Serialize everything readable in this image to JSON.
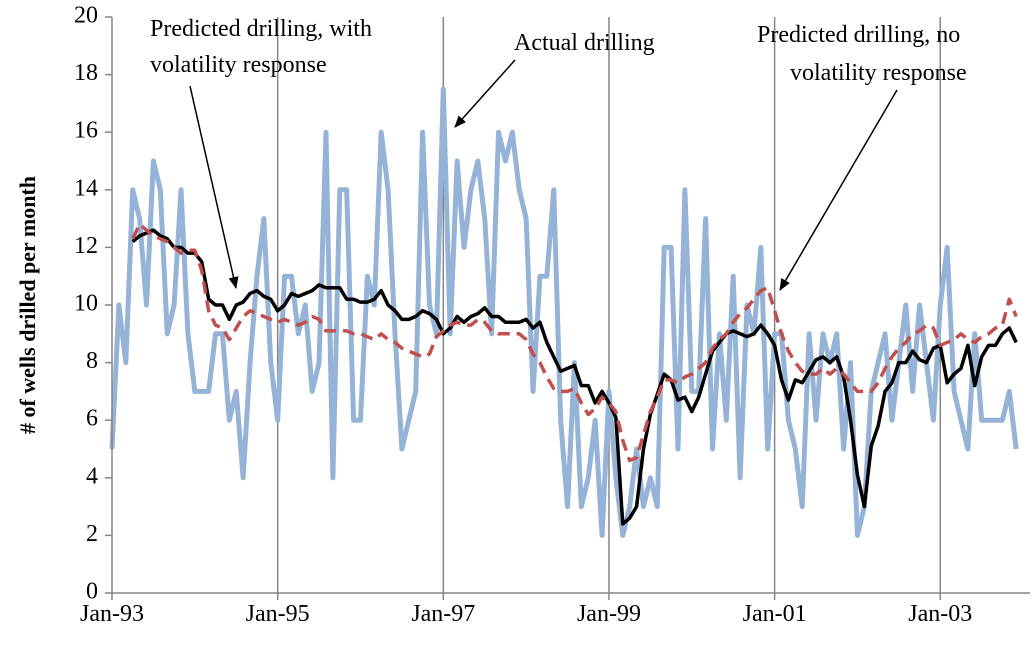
{
  "chart_data": {
    "type": "line",
    "y_label": "# of wells drilled per month",
    "categories": [
      "Jan-93",
      null,
      null,
      null,
      null,
      null,
      null,
      null,
      null,
      null,
      null,
      null,
      null,
      null,
      null,
      null,
      null,
      null,
      null,
      null,
      null,
      null,
      null,
      null,
      "Jan-95",
      null,
      null,
      null,
      null,
      null,
      null,
      null,
      null,
      null,
      null,
      null,
      null,
      null,
      null,
      null,
      null,
      null,
      null,
      null,
      null,
      null,
      null,
      null,
      "Jan-97",
      null,
      null,
      null,
      null,
      null,
      null,
      null,
      null,
      null,
      null,
      null,
      null,
      null,
      null,
      null,
      null,
      null,
      null,
      null,
      null,
      null,
      null,
      null,
      "Jan-99",
      null,
      null,
      null,
      null,
      null,
      null,
      null,
      null,
      null,
      null,
      null,
      null,
      null,
      null,
      null,
      null,
      null,
      null,
      null,
      null,
      null,
      null,
      null,
      "Jan-01",
      null,
      null,
      null,
      null,
      null,
      null,
      null,
      null,
      null,
      null,
      null,
      null,
      null,
      null,
      null,
      null,
      null,
      null,
      null,
      null,
      null,
      null,
      null,
      "Jan-03",
      null,
      null,
      null,
      null,
      null,
      null,
      null,
      null,
      null,
      null,
      null
    ],
    "series": [
      {
        "name": "Actual drilling",
        "color": "#95b3d7",
        "dash": false,
        "values": [
          5,
          10,
          8,
          14,
          13,
          10,
          15,
          14,
          9,
          10,
          14,
          9,
          7,
          7,
          7,
          9,
          9,
          6,
          7,
          4,
          8,
          11,
          13,
          8,
          6,
          11,
          11,
          9,
          10,
          7,
          8,
          16,
          4,
          14,
          14,
          6,
          6,
          11,
          10,
          16,
          14,
          9,
          5,
          6,
          7,
          16,
          10,
          9,
          17.5,
          9,
          15,
          12,
          14,
          15,
          13,
          9,
          16,
          15,
          16,
          14,
          13,
          7,
          11,
          11,
          14,
          6,
          3,
          8,
          3,
          4,
          6,
          2,
          7,
          4,
          2,
          3,
          5,
          3,
          4,
          3,
          12,
          12,
          5,
          14,
          7,
          7,
          13,
          5,
          9,
          6,
          11,
          4,
          10,
          9,
          12,
          5,
          9,
          9,
          6,
          5,
          3,
          9,
          6,
          9,
          8,
          9,
          5,
          8,
          2,
          3,
          7,
          8,
          9,
          6,
          8,
          10,
          7,
          10,
          8,
          6,
          10,
          12,
          7,
          6,
          5,
          9,
          6,
          6,
          6,
          6,
          7,
          5
        ]
      },
      {
        "name": "Predicted drilling, with volatility response",
        "color": "#000000",
        "dash": false,
        "values": [
          null,
          null,
          null,
          12.2,
          12.4,
          12.5,
          12.6,
          12.4,
          12.3,
          12.0,
          12.0,
          11.8,
          11.8,
          11.5,
          10.2,
          10.0,
          10.0,
          9.5,
          10.0,
          10.1,
          10.4,
          10.5,
          10.3,
          10.2,
          9.8,
          10.0,
          10.4,
          10.3,
          10.4,
          10.5,
          10.7,
          10.6,
          10.6,
          10.6,
          10.2,
          10.2,
          10.1,
          10.1,
          10.2,
          10.5,
          10.0,
          9.8,
          9.5,
          9.5,
          9.6,
          9.8,
          9.7,
          9.5,
          9.0,
          9.2,
          9.6,
          9.4,
          9.6,
          9.7,
          9.9,
          9.6,
          9.6,
          9.4,
          9.4,
          9.4,
          9.5,
          9.2,
          9.4,
          8.7,
          8.2,
          7.7,
          7.8,
          7.9,
          7.2,
          7.2,
          6.6,
          7.0,
          6.6,
          6.1,
          2.4,
          2.6,
          3.0,
          5.0,
          6.2,
          6.9,
          7.6,
          7.4,
          6.7,
          6.8,
          6.3,
          6.8,
          7.6,
          8.4,
          8.7,
          9.0,
          9.1,
          9.0,
          8.9,
          9.0,
          9.3,
          9.0,
          8.6,
          7.4,
          6.7,
          7.4,
          7.3,
          7.7,
          8.1,
          8.2,
          8.0,
          8.2,
          7.5,
          6.0,
          4.1,
          3.0,
          5.1,
          5.8,
          7.0,
          7.3,
          8.0,
          8.0,
          8.4,
          8.1,
          8.0,
          8.5,
          8.6,
          7.3,
          7.6,
          7.8,
          8.6,
          7.2,
          8.2,
          8.6,
          8.6,
          9.0,
          9.2,
          8.7
        ]
      },
      {
        "name": "Predicted drilling, no volatility response",
        "color": "#c0504d",
        "dash": true,
        "values": [
          null,
          null,
          null,
          12.3,
          12.8,
          12.6,
          12.4,
          12.3,
          12.2,
          12.0,
          11.8,
          11.9,
          11.9,
          11.2,
          9.8,
          9.3,
          9.2,
          8.8,
          9.2,
          9.6,
          9.8,
          9.7,
          9.6,
          9.5,
          9.4,
          9.5,
          9.4,
          9.3,
          9.4,
          9.6,
          9.5,
          9.1,
          9.1,
          9.1,
          9.1,
          9.0,
          9.0,
          8.9,
          8.8,
          9.0,
          8.8,
          8.7,
          8.5,
          8.4,
          8.3,
          8.2,
          8.3,
          8.9,
          9.1,
          9.3,
          9.4,
          9.3,
          9.3,
          9.5,
          9.4,
          9.1,
          9.0,
          9.0,
          9.0,
          9.0,
          8.8,
          8.3,
          8.0,
          7.5,
          7.1,
          7.0,
          7.0,
          7.1,
          6.6,
          6.2,
          6.4,
          6.8,
          6.6,
          6.3,
          5.3,
          4.6,
          4.7,
          5.5,
          6.3,
          6.8,
          7.4,
          7.4,
          7.3,
          7.5,
          7.6,
          7.8,
          8.0,
          8.5,
          8.8,
          9.0,
          9.4,
          9.7,
          9.9,
          10.2,
          10.5,
          10.6,
          9.8,
          9.0,
          8.4,
          8.0,
          7.7,
          7.6,
          7.6,
          7.8,
          7.6,
          7.8,
          7.6,
          7.3,
          7.0,
          7.0,
          7.0,
          7.3,
          7.8,
          8.2,
          8.5,
          8.7,
          9.0,
          9.1,
          9.3,
          9.2,
          8.6,
          8.7,
          8.8,
          9.0,
          8.8,
          8.7,
          8.9,
          9.0,
          9.2,
          9.3,
          10.2,
          9.6
        ]
      }
    ],
    "annotations": [
      {
        "lines": [
          "Predicted drilling, with",
          "volatility response"
        ]
      },
      {
        "lines": [
          "Actual drilling"
        ]
      },
      {
        "lines": [
          "Predicted drilling, no",
          "volatility response"
        ]
      }
    ],
    "ylim": [
      0,
      20
    ],
    "yticks": [
      0,
      2,
      4,
      6,
      8,
      10,
      12,
      14,
      16,
      18,
      20
    ],
    "grid": {
      "x": true,
      "y": false
    }
  }
}
